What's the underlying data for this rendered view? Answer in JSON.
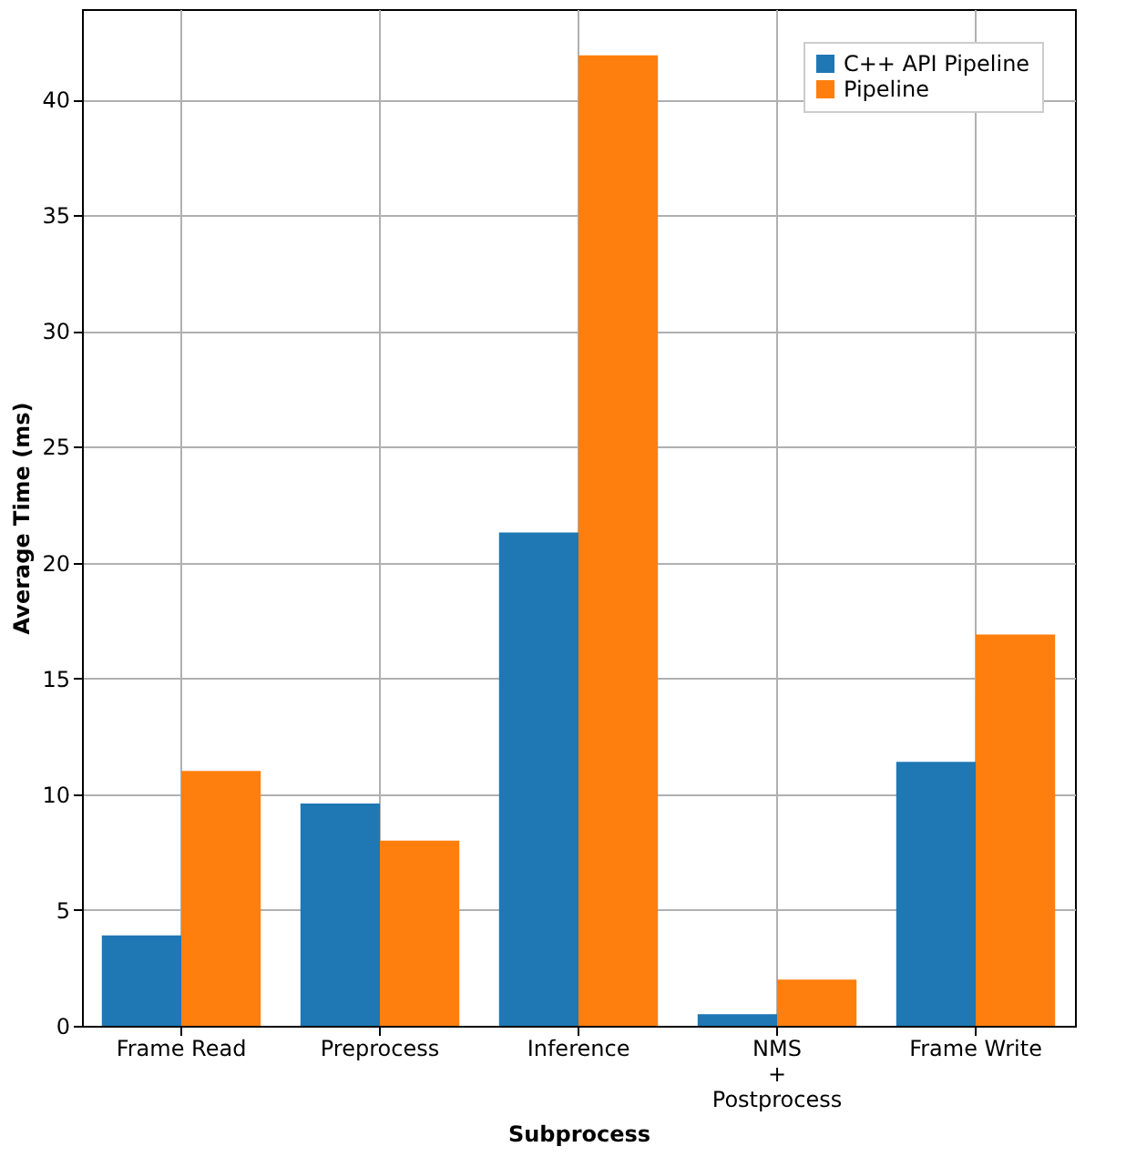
{
  "chart_data": {
    "type": "bar",
    "xlabel": "Subprocess",
    "ylabel": "Average Time (ms)",
    "categories": [
      "Frame Read",
      "Preprocess",
      "Inference",
      "NMS\n+\nPostprocess",
      "Frame Write"
    ],
    "series": [
      {
        "name": "C++ API Pipeline",
        "color": "#1f77b4",
        "values": [
          3.9,
          9.6,
          21.3,
          0.5,
          11.4
        ]
      },
      {
        "name": "Pipeline",
        "color": "#ff7f0e",
        "values": [
          11.0,
          8.0,
          41.9,
          2.0,
          16.9
        ]
      }
    ],
    "ylim": [
      0,
      43.9
    ],
    "yticks": [
      0,
      5,
      10,
      15,
      20,
      25,
      30,
      35,
      40
    ],
    "grid": true,
    "legend": "top right"
  }
}
